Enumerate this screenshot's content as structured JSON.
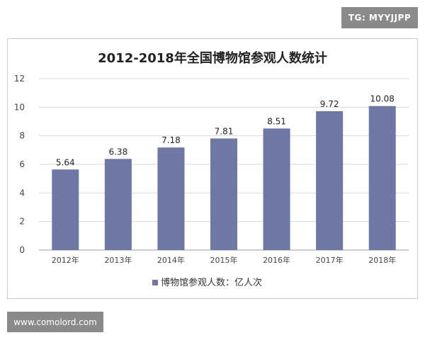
{
  "watermarks": {
    "top": "TG: MYYJJPP",
    "bottom": "www.comolord.com"
  },
  "chart_data": {
    "type": "bar",
    "title": "2012-2018年全国博物馆参观人数统计",
    "categories": [
      "2012年",
      "2013年",
      "2014年",
      "2015年",
      "2016年",
      "2017年",
      "2018年"
    ],
    "series": [
      {
        "name": "博物馆参观人数：亿人次",
        "values": [
          5.64,
          6.38,
          7.18,
          7.81,
          8.51,
          9.72,
          10.08
        ],
        "data_labels": [
          "5.64",
          "6.38",
          "7.18",
          "7.81",
          "8.51",
          "9.72",
          "10.08"
        ],
        "color": "#6f78a3"
      }
    ],
    "ylim": [
      0,
      12
    ],
    "yticks": [
      0,
      2,
      4,
      6,
      8,
      10,
      12
    ],
    "ytick_labels": [
      "0",
      "2",
      "4",
      "6",
      "8",
      "10",
      "12"
    ],
    "grid": true,
    "legend": "bottom",
    "xlabel": "",
    "ylabel": ""
  }
}
